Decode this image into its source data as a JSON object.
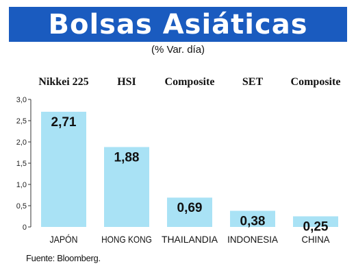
{
  "title": "Bolsas Asiáticas",
  "subtitle": "(% Var. día)",
  "source": "Fuente: Bloomberg.",
  "colors": {
    "title_bar": "#1a5bbf",
    "bar": "#a9e2f5",
    "axis": "#333333"
  },
  "chart_data": {
    "type": "bar",
    "indices": [
      "Nikkei 225",
      "HSI",
      "Composite",
      "SET",
      "Composite"
    ],
    "categories": [
      "JAPÓN",
      "HONG KONG",
      "THAILANDIA",
      "INDONESIA",
      "CHINA"
    ],
    "values": [
      2.71,
      1.88,
      0.69,
      0.38,
      0.25
    ],
    "value_labels": [
      "2,71",
      "1,88",
      "0,69",
      "0,38",
      "0,25"
    ],
    "yticks": [
      "0",
      "0,5",
      "1,0",
      "1,5",
      "2,0",
      "2,5",
      "3,0"
    ],
    "ylim": [
      0,
      3
    ],
    "grid": false
  }
}
